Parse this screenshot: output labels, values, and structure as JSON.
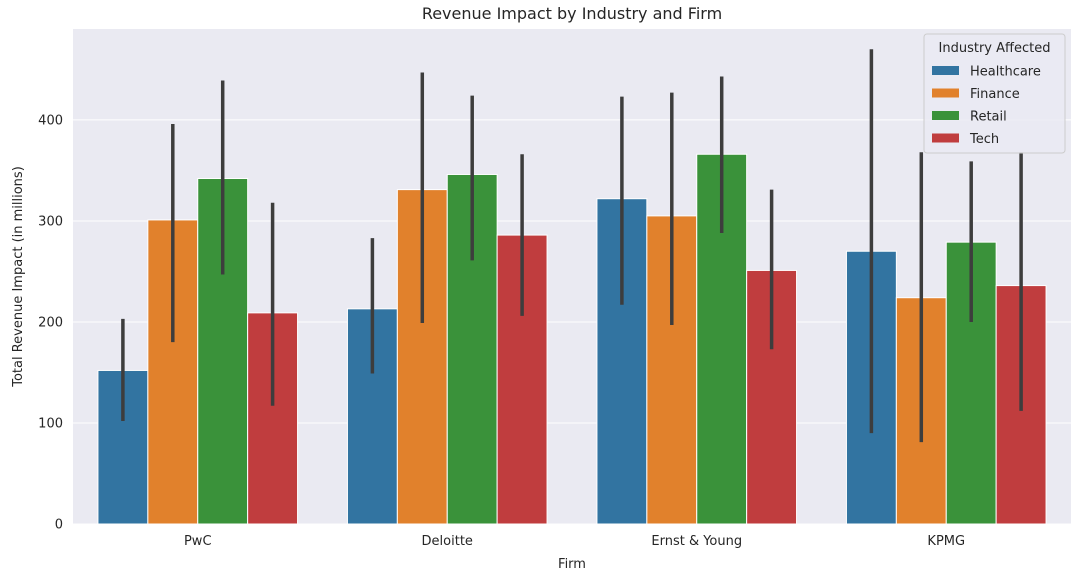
{
  "chart_data": {
    "type": "bar",
    "title": "Revenue Impact by Industry and Firm",
    "xlabel": "Firm",
    "ylabel": "Total Revenue Impact (in millions)",
    "categories": [
      "PwC",
      "Deloitte",
      "Ernst & Young",
      "KPMG"
    ],
    "ylim": [
      0,
      490
    ],
    "yticks": [
      0,
      100,
      200,
      300,
      400
    ],
    "grid": true,
    "legend": {
      "title": "Industry Affected",
      "position": "top-right"
    },
    "series": [
      {
        "name": "Healthcare",
        "color": "#3274a1",
        "values": [
          152,
          213,
          322,
          270
        ],
        "err_low": [
          102,
          149,
          217,
          90
        ],
        "err_high": [
          203,
          283,
          423,
          470
        ]
      },
      {
        "name": "Finance",
        "color": "#e1812c",
        "values": [
          301,
          331,
          305,
          224
        ],
        "err_low": [
          180,
          199,
          197,
          81
        ],
        "err_high": [
          396,
          447,
          427,
          368
        ]
      },
      {
        "name": "Retail",
        "color": "#3a923a",
        "values": [
          342,
          346,
          366,
          279
        ],
        "err_low": [
          247,
          261,
          288,
          200
        ],
        "err_high": [
          439,
          424,
          443,
          359
        ]
      },
      {
        "name": "Tech",
        "color": "#c03d3e",
        "values": [
          209,
          286,
          251,
          236
        ],
        "err_low": [
          117,
          206,
          173,
          112
        ],
        "err_high": [
          318,
          366,
          331,
          368
        ]
      }
    ]
  }
}
